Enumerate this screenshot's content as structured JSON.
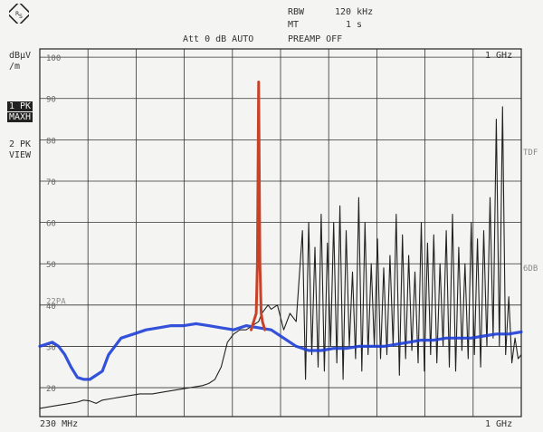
{
  "header": {
    "rbw_label": "RBW",
    "rbw_value": "120 kHz",
    "mt_label": "MT",
    "mt_value": "1 s",
    "att_text": "Att 0 dB AUTO",
    "preamp_text": "PREAMP OFF"
  },
  "side": {
    "unit_line1": "dBµV",
    "unit_line2": "/m",
    "trace1_a": "1 PK",
    "trace1_b": "MAXH",
    "trace2_a": "2 PK",
    "trace2_b": "VIEW"
  },
  "markers": {
    "limit_label": "22PA",
    "tdf": "TDF",
    "sixdb": "6DB"
  },
  "chart_data": {
    "type": "line",
    "x_start_label": "230 MHz",
    "x_stop_label": "1 GHz",
    "top_right_label": "1 GHz",
    "xlim": [
      230,
      1000
    ],
    "ylim": [
      13,
      102
    ],
    "y_ticks": [
      100,
      90,
      80,
      70,
      60,
      50,
      40,
      30,
      20
    ],
    "colors": {
      "trace1": "#222222",
      "trace2": "#1f3fd6",
      "peak": "#c8422a"
    },
    "series": [
      {
        "id": "trace1",
        "x": [
          230,
          250,
          270,
          290,
          300,
          310,
          320,
          330,
          350,
          370,
          390,
          410,
          430,
          450,
          470,
          490,
          500,
          510,
          520,
          530,
          540,
          550,
          560,
          570,
          580,
          585,
          590,
          595,
          600,
          610,
          620,
          630,
          640,
          650,
          655,
          660,
          665,
          670,
          675,
          680,
          685,
          690,
          695,
          700,
          705,
          710,
          715,
          720,
          725,
          730,
          735,
          740,
          745,
          750,
          755,
          760,
          765,
          770,
          775,
          780,
          785,
          790,
          795,
          800,
          805,
          810,
          815,
          820,
          825,
          830,
          835,
          840,
          845,
          850,
          855,
          860,
          865,
          870,
          875,
          880,
          885,
          890,
          895,
          900,
          905,
          910,
          915,
          920,
          925,
          930,
          935,
          940,
          945,
          950,
          955,
          960,
          965,
          970,
          975,
          980,
          985,
          990,
          995,
          1000
        ],
        "y": [
          15,
          15.5,
          16,
          16.5,
          17,
          16.8,
          16.2,
          17,
          17.5,
          18,
          18.5,
          18.5,
          19,
          19.5,
          20,
          20.5,
          21,
          22,
          25,
          31,
          33,
          34,
          34,
          35,
          36,
          38,
          39,
          40,
          39,
          40,
          34,
          38,
          36,
          58,
          22,
          60,
          28,
          54,
          25,
          62,
          24,
          55,
          30,
          60,
          26,
          64,
          22,
          58,
          30,
          48,
          27,
          66,
          24,
          60,
          28,
          50,
          30,
          56,
          27,
          49,
          28,
          52,
          30,
          62,
          23,
          57,
          27,
          52,
          29,
          48,
          26,
          60,
          24,
          55,
          28,
          57,
          26,
          50,
          30,
          58,
          25,
          62,
          24,
          54,
          29,
          50,
          27,
          60,
          28,
          56,
          25,
          58,
          30,
          66,
          32,
          85,
          30,
          88,
          28,
          42,
          26,
          32,
          27,
          28
        ]
      },
      {
        "id": "trace2",
        "x": [
          230,
          240,
          250,
          260,
          270,
          280,
          290,
          300,
          310,
          320,
          330,
          340,
          360,
          380,
          400,
          420,
          440,
          460,
          480,
          500,
          520,
          540,
          560,
          580,
          600,
          620,
          640,
          660,
          680,
          700,
          720,
          740,
          760,
          780,
          800,
          820,
          840,
          860,
          880,
          900,
          920,
          940,
          960,
          980,
          1000
        ],
        "y": [
          30,
          30.5,
          31,
          30,
          28,
          25,
          22.5,
          22,
          22,
          23,
          24,
          28,
          32,
          33,
          34,
          34.5,
          35,
          35,
          35.5,
          35,
          34.5,
          34,
          35,
          34.5,
          34,
          32,
          30,
          29,
          29,
          29.5,
          29.5,
          30,
          30,
          30,
          30.5,
          31,
          31.5,
          31.5,
          32,
          32,
          32,
          32.5,
          33,
          33,
          33.5
        ]
      },
      {
        "id": "peak",
        "x": [
          568,
          572,
          576,
          578,
          580,
          582,
          584,
          586,
          590
        ],
        "y": [
          34,
          36,
          38,
          50,
          94,
          50,
          38,
          36,
          34
        ]
      }
    ]
  }
}
